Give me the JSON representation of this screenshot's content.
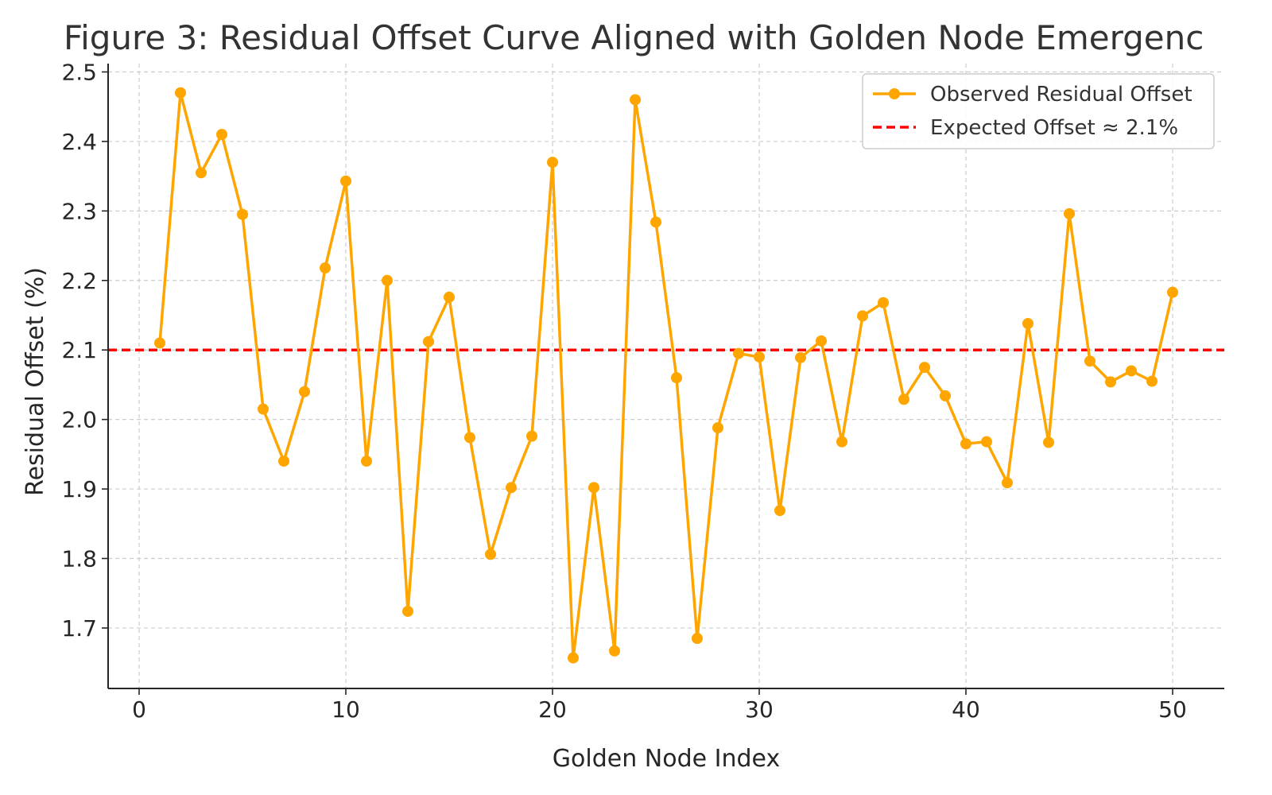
{
  "chart_data": {
    "type": "line",
    "title": "Figure 3: Residual Offset Curve Aligned with Golden Node Emergenc",
    "xlabel": "Golden Node Index",
    "ylabel": "Residual Offset (%)",
    "xlim": [
      -1.5,
      52.5
    ],
    "ylim": [
      1.613,
      2.512
    ],
    "xticks": [
      0,
      10,
      20,
      30,
      40,
      50
    ],
    "xtick_labels": [
      "0",
      "10",
      "20",
      "30",
      "40",
      "50"
    ],
    "yticks": [
      1.7,
      1.8,
      1.9,
      2.0,
      2.1,
      2.2,
      2.3,
      2.4,
      2.5
    ],
    "ytick_labels": [
      "1.7",
      "1.8",
      "1.9",
      "2.0",
      "2.1",
      "2.2",
      "2.3",
      "2.4",
      "2.5"
    ],
    "grid": true,
    "legend_position": "top-right",
    "series": [
      {
        "name": "Observed Residual Offset",
        "color": "#FFA500",
        "marker": "circle",
        "x": [
          1,
          2,
          3,
          4,
          5,
          6,
          7,
          8,
          9,
          10,
          11,
          12,
          13,
          14,
          15,
          16,
          17,
          18,
          19,
          20,
          21,
          22,
          23,
          24,
          25,
          26,
          27,
          28,
          29,
          30,
          31,
          32,
          33,
          34,
          35,
          36,
          37,
          38,
          39,
          40,
          41,
          42,
          43,
          44,
          45,
          46,
          47,
          48,
          49,
          50
        ],
        "y": [
          2.11,
          2.47,
          2.355,
          2.41,
          2.295,
          2.015,
          1.94,
          2.04,
          2.218,
          2.343,
          1.94,
          2.2,
          1.724,
          2.112,
          2.176,
          1.974,
          1.806,
          1.902,
          1.976,
          2.37,
          1.657,
          1.902,
          1.667,
          2.46,
          2.284,
          2.06,
          1.685,
          1.988,
          2.095,
          2.09,
          1.869,
          2.089,
          2.113,
          1.968,
          2.149,
          2.168,
          2.029,
          2.075,
          2.034,
          1.965,
          1.968,
          1.909,
          2.138,
          1.967,
          2.296,
          2.084,
          2.054,
          2.07,
          2.055,
          2.183
        ]
      },
      {
        "name": "Expected Offset ≈ 2.1%",
        "color": "#FF0000",
        "style": "dashed",
        "y_constant": 2.1
      }
    ]
  }
}
